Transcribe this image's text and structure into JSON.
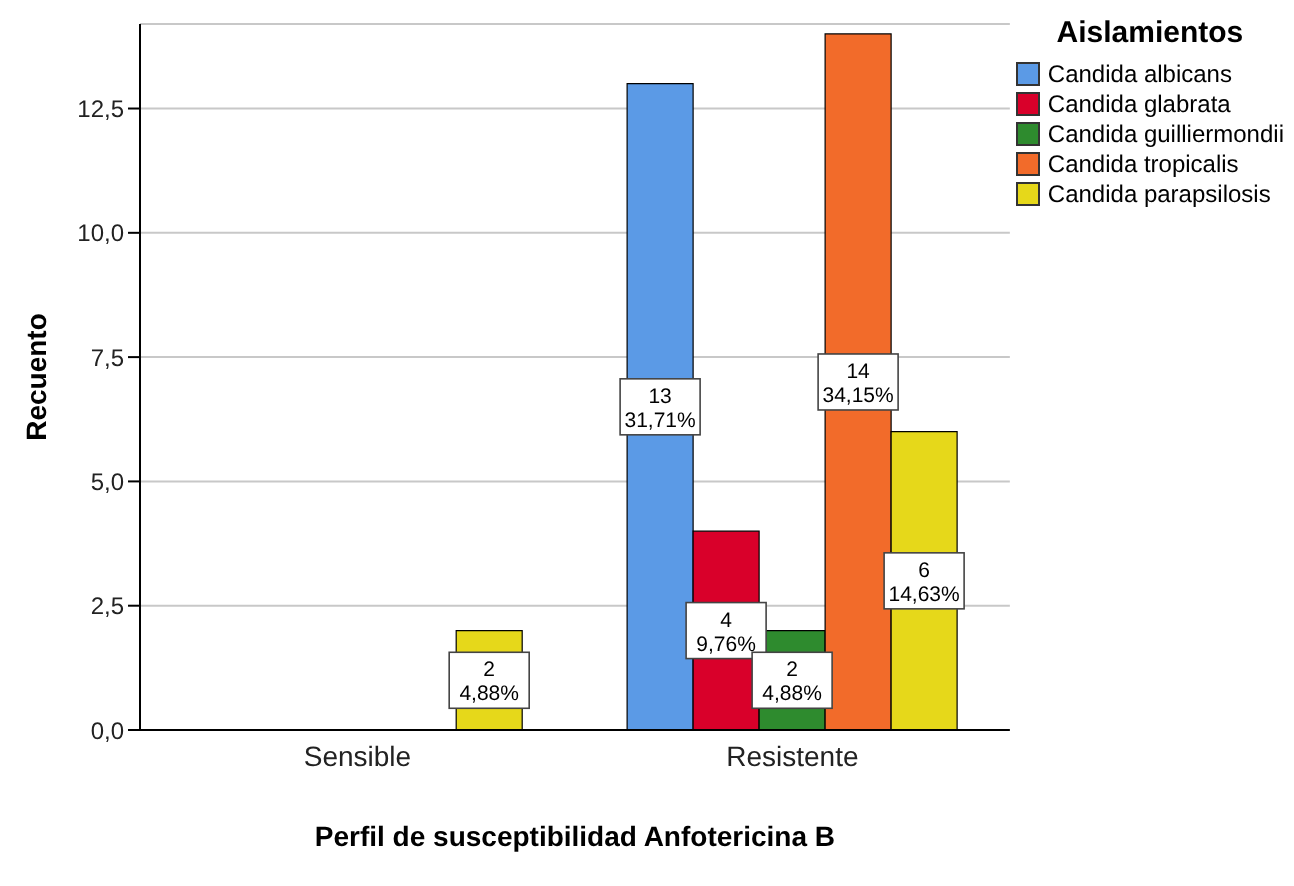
{
  "chart_data": {
    "type": "bar",
    "xlabel": "Perfil de susceptibilidad Anfotericina B",
    "ylabel": "Recuento",
    "legend_title": "Aislamientos",
    "categories": [
      "Sensible",
      "Resistente"
    ],
    "series": [
      {
        "name": "Candida albicans",
        "color": "#5b9ae6",
        "values": [
          null,
          13
        ],
        "value_labels": [
          null,
          "13\n31,71%"
        ]
      },
      {
        "name": "Candida glabrata",
        "color": "#d9002a",
        "values": [
          null,
          4
        ],
        "value_labels": [
          null,
          "4\n9,76%"
        ]
      },
      {
        "name": "Candida guilliermondii",
        "color": "#2e8b2e",
        "values": [
          null,
          2
        ],
        "value_labels": [
          null,
          "2\n4,88%"
        ]
      },
      {
        "name": "Candida tropicalis",
        "color": "#f26b2a",
        "values": [
          null,
          14
        ],
        "value_labels": [
          null,
          "14\n34,15%"
        ]
      },
      {
        "name": "Candida parapsilosis",
        "color": "#e6d81a",
        "values": [
          2,
          6
        ],
        "value_labels": [
          "2\n4,88%",
          "6\n14,63%"
        ]
      }
    ],
    "ylim": [
      0,
      14.2
    ],
    "yticks": [
      {
        "value": 0,
        "label": "0,0"
      },
      {
        "value": 2.5,
        "label": "2,5"
      },
      {
        "value": 5,
        "label": "5,0"
      },
      {
        "value": 7.5,
        "label": "7,5"
      },
      {
        "value": 10,
        "label": "10,0"
      },
      {
        "value": 12.5,
        "label": "12,5"
      }
    ],
    "grid": "y",
    "legend": "top right"
  }
}
